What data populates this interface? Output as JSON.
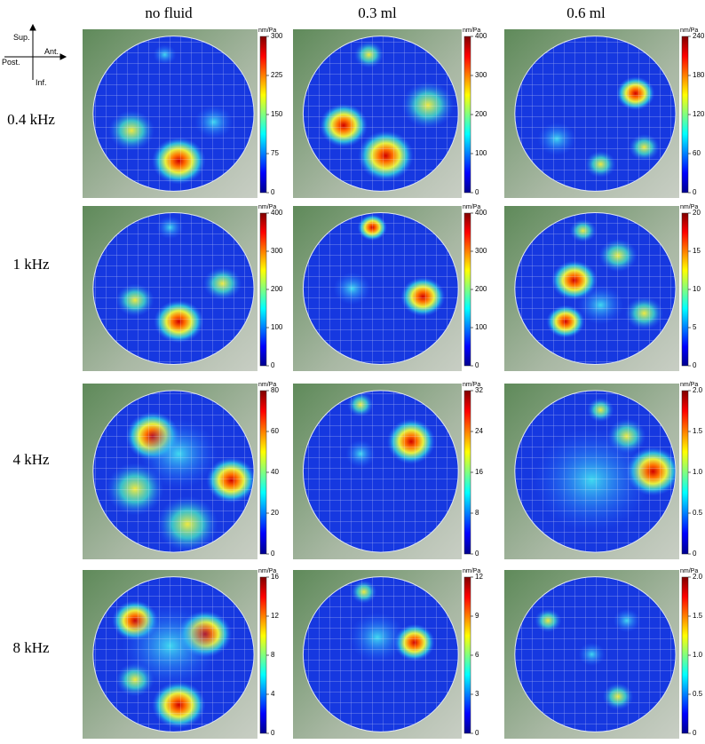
{
  "column_headers": [
    "no fluid",
    "0.3 ml",
    "0.6 ml"
  ],
  "row_labels": [
    "0.4 kHz",
    "1 kHz",
    "4 kHz",
    "8 kHz"
  ],
  "orientation": {
    "sup": "Sup.",
    "inf": "Inf.",
    "post": "Post.",
    "ant": "Ant."
  },
  "panels": [
    [
      {
        "unit": "nm/Pa",
        "ticks": [
          "0",
          "75",
          "150",
          "225",
          "300"
        ]
      },
      {
        "unit": "nm/Pa",
        "ticks": [
          "0",
          "100",
          "200",
          "300",
          "400"
        ]
      },
      {
        "unit": "nm/Pa",
        "ticks": [
          "0",
          "60",
          "120",
          "180",
          "240"
        ]
      }
    ],
    [
      {
        "unit": "nm/Pa",
        "ticks": [
          "0",
          "100",
          "200",
          "300",
          "400"
        ]
      },
      {
        "unit": "nm/Pa",
        "ticks": [
          "0",
          "100",
          "200",
          "300",
          "400"
        ]
      },
      {
        "unit": "nm/Pa",
        "ticks": [
          "0",
          "5",
          "10",
          "15",
          "20"
        ]
      }
    ],
    [
      {
        "unit": "nm/Pa",
        "ticks": [
          "0",
          "20",
          "40",
          "60",
          "80"
        ]
      },
      {
        "unit": "nm/Pa",
        "ticks": [
          "0",
          "8",
          "16",
          "24",
          "32"
        ]
      },
      {
        "unit": "nm/Pa",
        "ticks": [
          "0",
          "0.5",
          "1.0",
          "1.5",
          "2.0"
        ]
      }
    ],
    [
      {
        "unit": "nm/Pa",
        "ticks": [
          "0",
          "4",
          "8",
          "12",
          "16"
        ]
      },
      {
        "unit": "nm/Pa",
        "ticks": [
          "0",
          "3",
          "6",
          "9",
          "12"
        ]
      },
      {
        "unit": "nm/Pa",
        "ticks": [
          "0",
          "0.5",
          "1.0",
          "1.5",
          "2.0"
        ]
      }
    ]
  ]
}
